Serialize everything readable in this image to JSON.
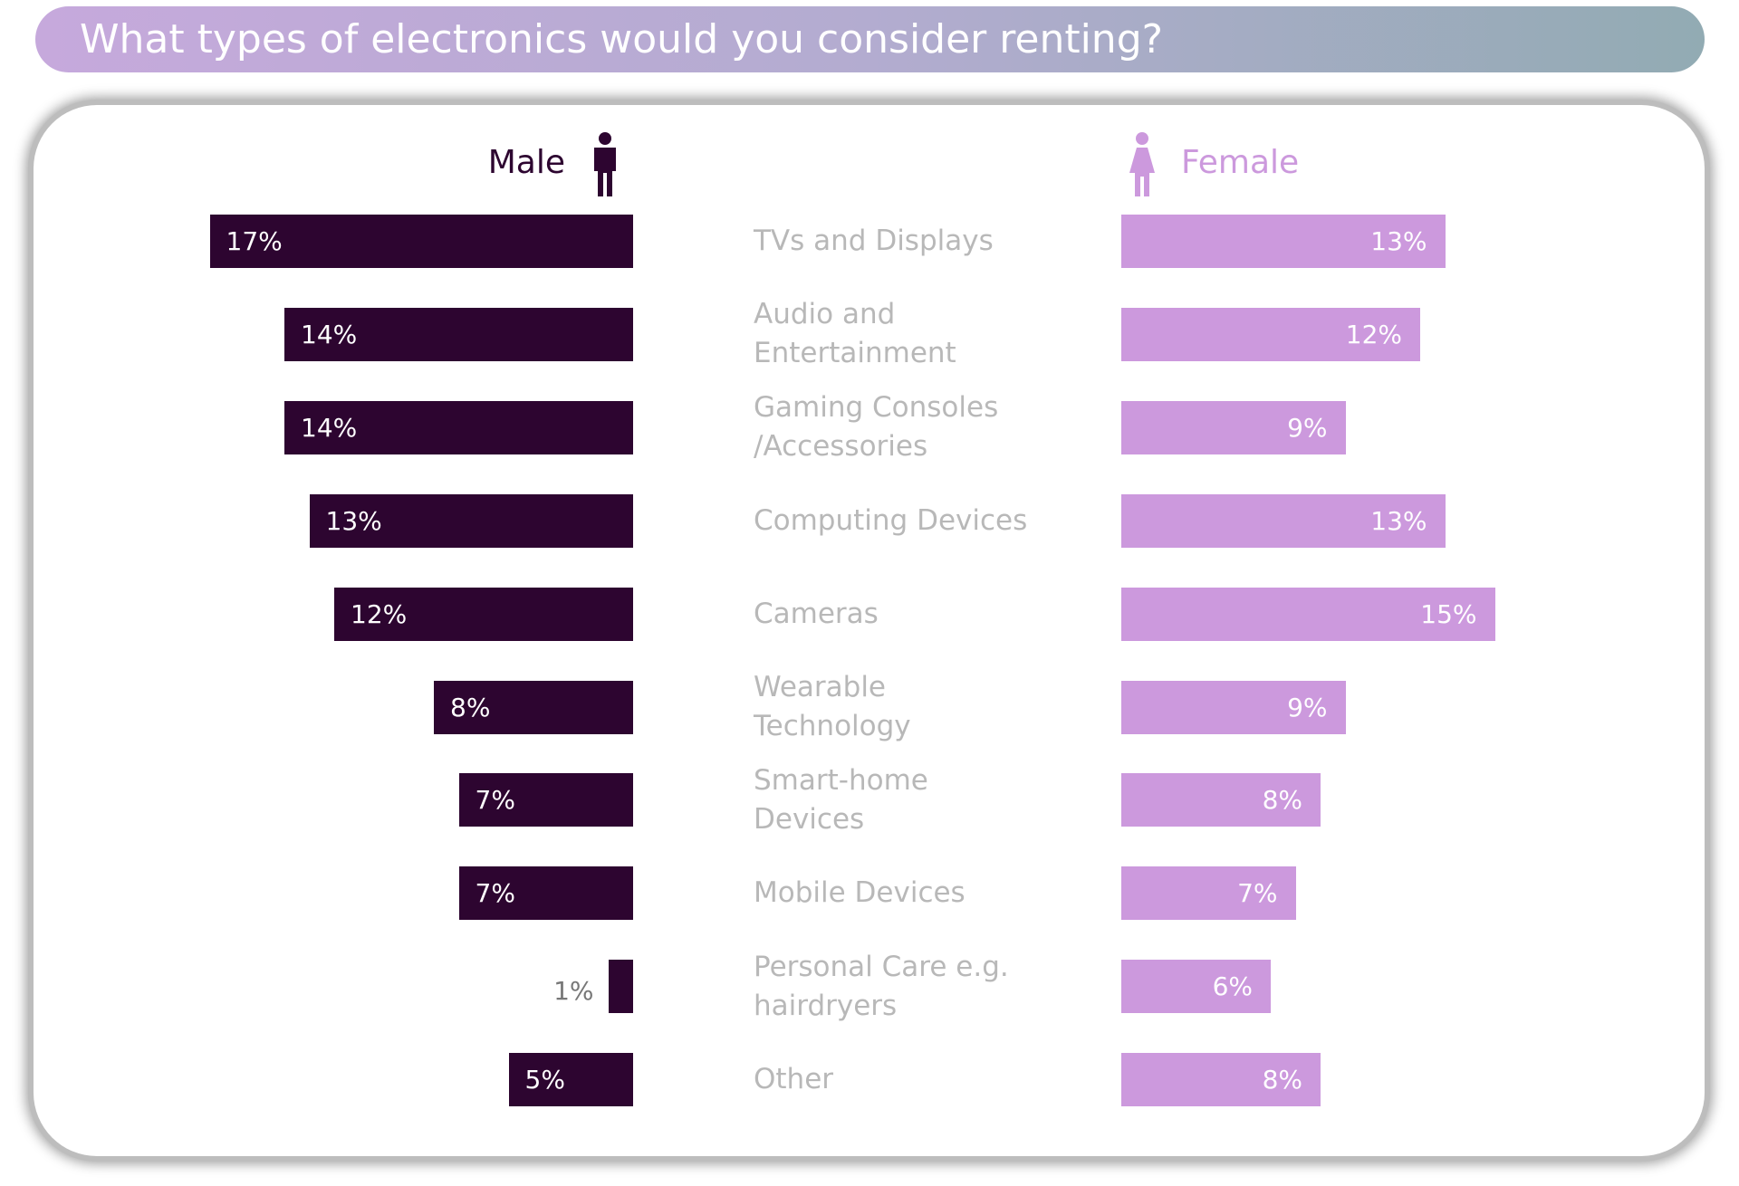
{
  "chart_data": {
    "type": "butterfly",
    "title": "What types of electronics would you consider renting?",
    "categories": [
      "TVs and Displays",
      "Audio and Entertainment",
      "Gaming Consoles /Accessories",
      "Computing Devices",
      "Cameras",
      "Wearable Technology",
      "Smart-home Devices",
      "Mobile Devices",
      "Personal Care e.g. hairdryers",
      "Other"
    ],
    "series": [
      {
        "name": "Male",
        "color": "#2d0530",
        "values": [
          17,
          14,
          14,
          13,
          12,
          8,
          7,
          7,
          1,
          5
        ],
        "value_labels": [
          "17%",
          "14%",
          "14%",
          "13%",
          "12%",
          "8%",
          "7%",
          "7%",
          "1%",
          "5%"
        ]
      },
      {
        "name": "Female",
        "color": "#cc99dd",
        "values": [
          13,
          12,
          9,
          13,
          15,
          9,
          8,
          7,
          6,
          8
        ],
        "value_labels": [
          "13%",
          "12%",
          "9%",
          "13%",
          "15%",
          "9%",
          "8%",
          "7%",
          "6%",
          "8%"
        ]
      }
    ]
  }
}
